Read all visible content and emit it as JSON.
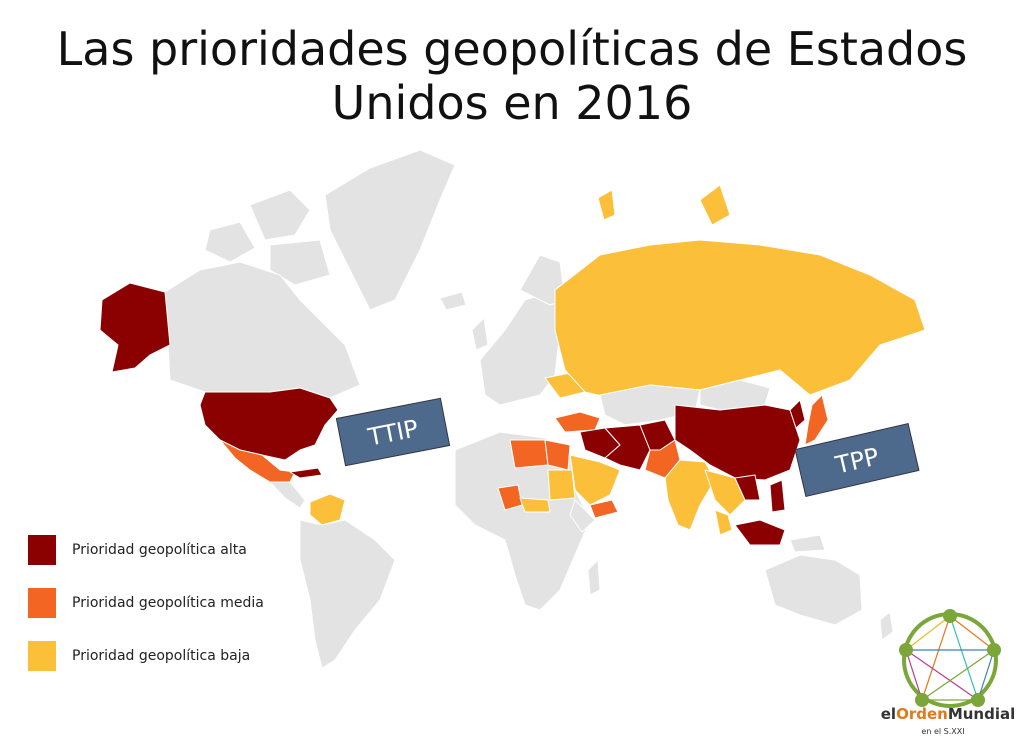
{
  "title": {
    "line1": "Las prioridades geopolíticas de Estados",
    "line2": "Unidos en 2016"
  },
  "colors": {
    "alta": "#8b0000",
    "media": "#f26522",
    "baja": "#fbbf3a",
    "other": "#e3e3e3",
    "label_box": "#4d6a8c"
  },
  "legend": [
    {
      "label": "Prioridad geopolítica alta",
      "color": "#8b0000"
    },
    {
      "label": "Prioridad geopolítica media",
      "color": "#f26522"
    },
    {
      "label": "Prioridad geopolítica baja",
      "color": "#fbbf3a"
    }
  ],
  "labels": {
    "ttip": "TTIP",
    "tpp": "TPP"
  },
  "logo": {
    "brand_pre": "el",
    "brand_accent": "Orden",
    "brand_post": "Mundial",
    "sub": "en el S.XXI"
  }
}
